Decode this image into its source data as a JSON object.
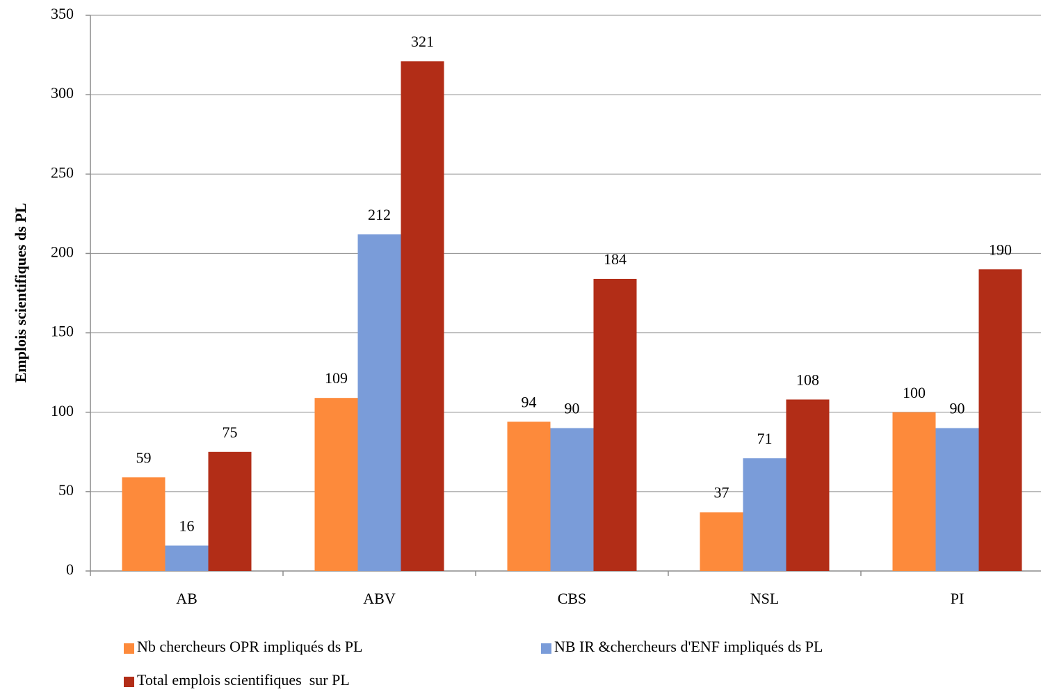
{
  "chart_data": {
    "type": "bar",
    "y_label": "Emplois scientifiques ds PL",
    "categories": [
      "AB",
      "ABV",
      "CBS",
      "NSL",
      "PI"
    ],
    "series": [
      {
        "name": "Nb chercheurs OPR impliqués ds PL",
        "color": "#fd8a3b",
        "values": [
          59,
          109,
          94,
          37,
          100
        ]
      },
      {
        "name": "NB IR &chercheurs d'ENF impliqués ds PL",
        "color": "#7a9cd9",
        "values": [
          16,
          212,
          90,
          71,
          90
        ]
      },
      {
        "name": "Total emplois scientifiques  sur PL",
        "color": "#b22d17",
        "values": [
          75,
          321,
          184,
          108,
          190
        ]
      }
    ],
    "ylim": [
      0,
      350
    ],
    "yticks": [
      0,
      50,
      100,
      150,
      200,
      250,
      300,
      350
    ],
    "grid": true,
    "legend": "bottom"
  }
}
